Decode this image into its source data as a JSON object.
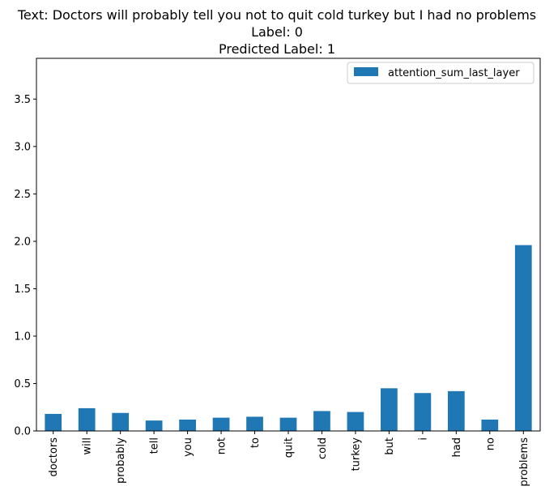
{
  "chart_data": {
    "type": "bar",
    "title_lines": [
      "Text: Doctors will probably tell you not to quit cold turkey but I had no problems",
      "Label: 0",
      "Predicted Label: 1"
    ],
    "xlabel": "",
    "ylabel": "",
    "categories": [
      "doctors",
      "will",
      "probably",
      "tell",
      "you",
      "not",
      "to",
      "quit",
      "cold",
      "turkey",
      "but",
      "i",
      "had",
      "no",
      "problems"
    ],
    "series": [
      {
        "name": "attention_sum_last_layer",
        "color": "#1f77b4",
        "values": [
          0.18,
          0.24,
          0.19,
          0.11,
          0.12,
          0.14,
          0.15,
          0.14,
          0.21,
          0.2,
          0.45,
          0.4,
          0.42,
          0.12,
          1.96
        ]
      }
    ],
    "ylim": [
      0,
      3.93
    ],
    "yticks": [
      "0.0",
      "0.5",
      "1.0",
      "1.5",
      "2.0",
      "2.5",
      "3.0",
      "3.5"
    ],
    "grid": false,
    "legend_position": "top-right"
  }
}
